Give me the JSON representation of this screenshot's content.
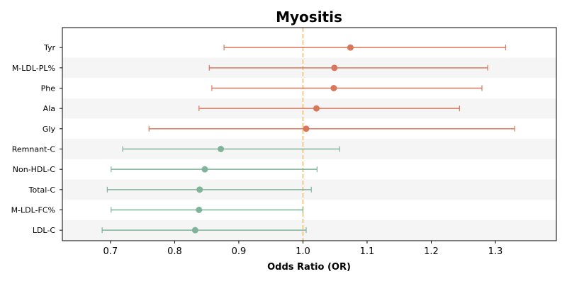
{
  "chart_data": {
    "type": "forest",
    "title": "Myositis",
    "xlabel": "Odds Ratio (OR)",
    "ylabel": "",
    "xlim": [
      0.625,
      1.395
    ],
    "x_ticks": [
      0.7,
      0.8,
      0.9,
      1.0,
      1.1,
      1.2,
      1.3
    ],
    "x_tick_labels": [
      "0.7",
      "0.8",
      "0.9",
      "1.0",
      "1.1",
      "1.2",
      "1.3"
    ],
    "reference_line": 1.0,
    "reference_line_color": "#f0c67a",
    "grid": false,
    "colors": {
      "increased": "#d9775c",
      "decreased": "#7fb39a",
      "band": "#f5f5f5"
    },
    "rows": [
      {
        "label": "Tyr",
        "or": 1.074,
        "lower": 0.877,
        "upper": 1.316,
        "group": "increased"
      },
      {
        "label": "M-LDL-PL%",
        "or": 1.049,
        "lower": 0.854,
        "upper": 1.288,
        "group": "increased"
      },
      {
        "label": "Phe",
        "or": 1.048,
        "lower": 0.858,
        "upper": 1.279,
        "group": "increased"
      },
      {
        "label": "Ala",
        "or": 1.021,
        "lower": 0.838,
        "upper": 1.244,
        "group": "increased"
      },
      {
        "label": "Gly",
        "or": 1.005,
        "lower": 0.76,
        "upper": 1.33,
        "group": "increased"
      },
      {
        "label": "Remnant-C",
        "or": 0.872,
        "lower": 0.719,
        "upper": 1.057,
        "group": "decreased"
      },
      {
        "label": "Non-HDL-C",
        "or": 0.847,
        "lower": 0.701,
        "upper": 1.022,
        "group": "decreased"
      },
      {
        "label": "Total-C",
        "or": 0.839,
        "lower": 0.695,
        "upper": 1.013,
        "group": "decreased"
      },
      {
        "label": "M-LDL-FC%",
        "or": 0.838,
        "lower": 0.701,
        "upper": 1.0,
        "group": "decreased"
      },
      {
        "label": "LDL-C",
        "or": 0.832,
        "lower": 0.687,
        "upper": 1.005,
        "group": "decreased"
      }
    ]
  }
}
